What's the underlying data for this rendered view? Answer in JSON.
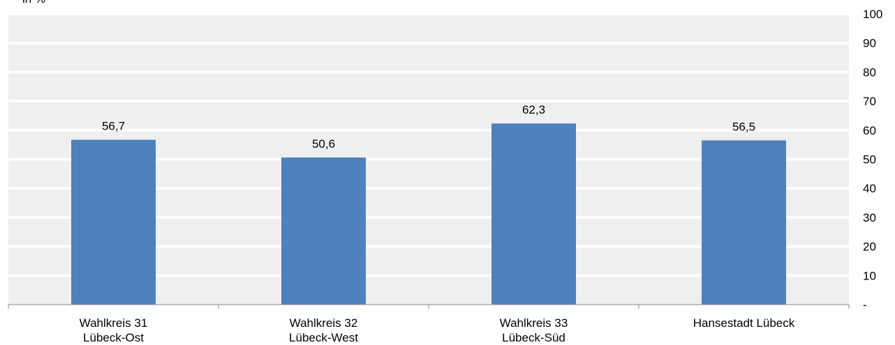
{
  "chart_data": {
    "type": "bar",
    "unit_label": "in %",
    "categories": [
      [
        "Wahlkreis 31",
        "Lübeck-Ost"
      ],
      [
        "Wahlkreis 32",
        "Lübeck-West"
      ],
      [
        "Wahlkreis 33",
        "Lübeck-Süd"
      ],
      [
        "Hansestadt Lübeck"
      ]
    ],
    "values": [
      56.7,
      50.6,
      62.3,
      56.5
    ],
    "value_labels": [
      "56,7",
      "50,6",
      "62,3",
      "56,5"
    ],
    "y_ticks": [
      {
        "value": 0,
        "label": "-"
      },
      {
        "value": 10,
        "label": "10"
      },
      {
        "value": 20,
        "label": "20"
      },
      {
        "value": 30,
        "label": "30"
      },
      {
        "value": 40,
        "label": "40"
      },
      {
        "value": 50,
        "label": "50"
      },
      {
        "value": 60,
        "label": "60"
      },
      {
        "value": 70,
        "label": "70"
      },
      {
        "value": 80,
        "label": "80"
      },
      {
        "value": 90,
        "label": "90"
      },
      {
        "value": 100,
        "label": "100"
      }
    ],
    "ylim": [
      0,
      100
    ],
    "y_axis_side": "right",
    "grid": true,
    "colors": {
      "bar": "#4f81bd",
      "plot_background": "#efefef",
      "gridline": "#ffffff",
      "axis": "#888888"
    }
  }
}
